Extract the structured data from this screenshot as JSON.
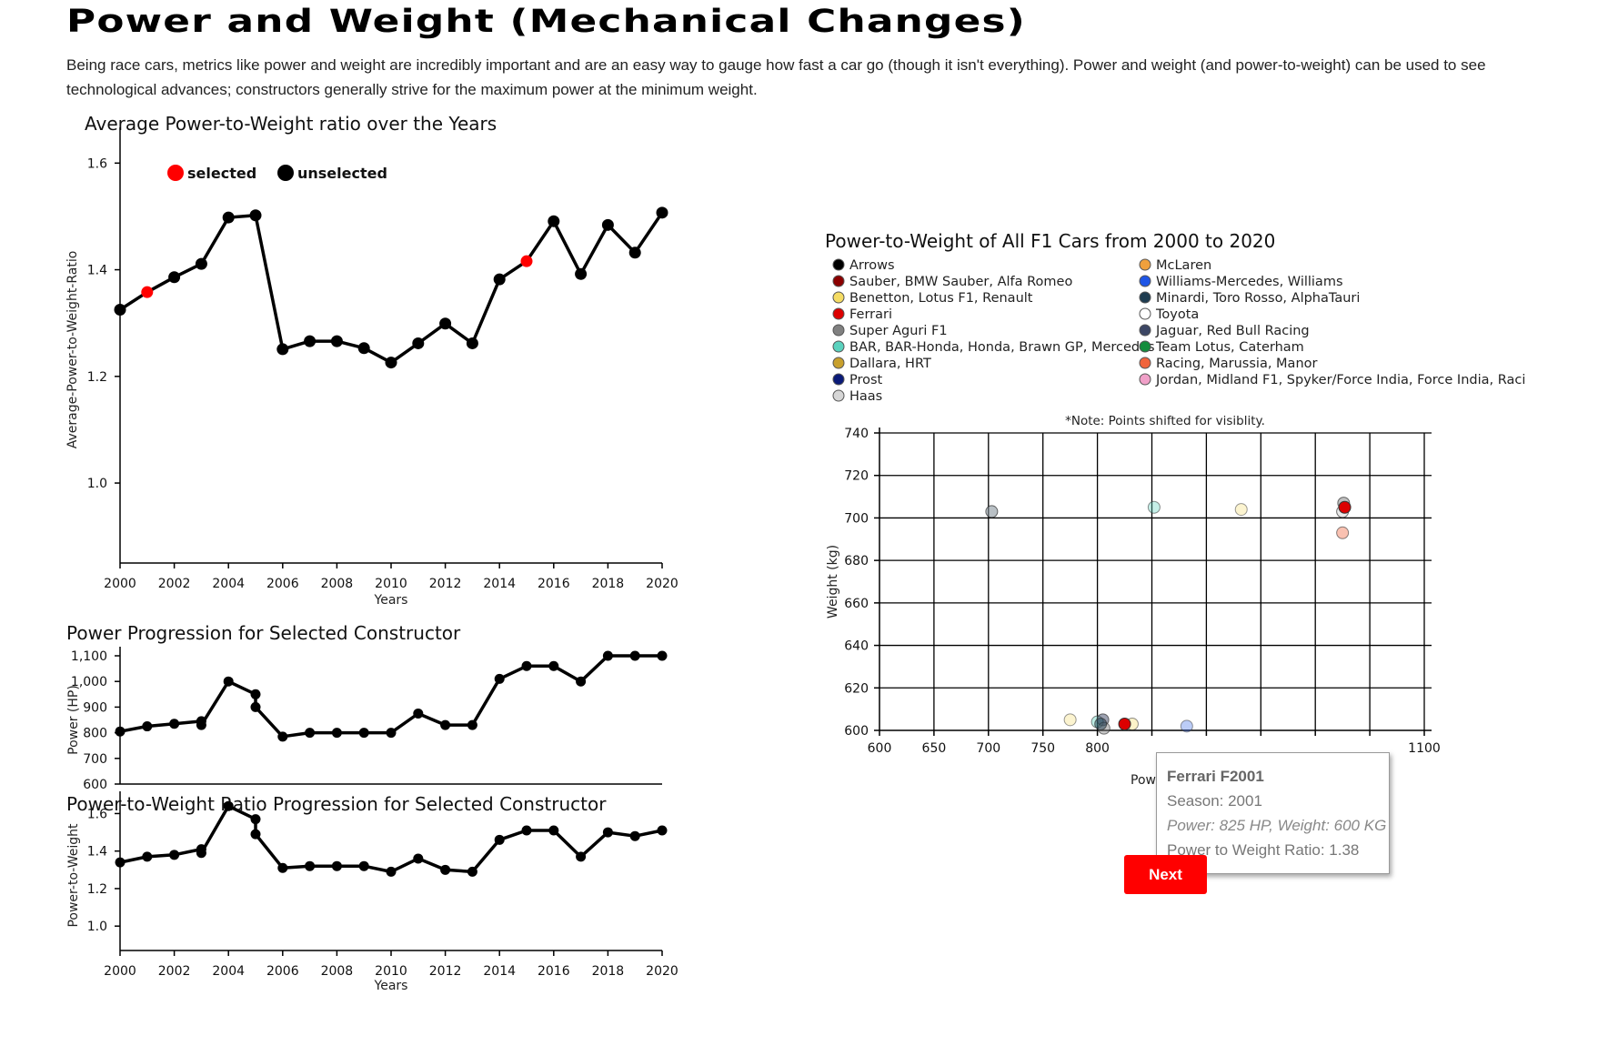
{
  "page": {
    "title": "Power and Weight (Mechanical Changes)",
    "intro": "Being race cars, metrics like power and weight are incredibly important and are an easy way to gauge how fast a car go (though it isn't everything). Power and weight (and power-to-weight) can be used to see technological advances; constructors generally strive for the maximum power at the minimum weight."
  },
  "colors": {
    "selected": "#ff0000",
    "unselected": "#000000",
    "line": "#000000",
    "button": "#ff0000"
  },
  "tooltip": {
    "title": "Ferrari F2001",
    "season": "Season: 2001",
    "detail": "Power: 825 HP, Weight: 600 KG",
    "ratio": "Power to Weight Ratio: 1.38"
  },
  "next_button": {
    "label": "Next"
  },
  "chart_data": [
    {
      "id": "avg-ptw",
      "type": "line",
      "title": "Average Power-to-Weight ratio over the Years",
      "xlabel": "Years",
      "ylabel": "Average-Power-to-Weight-Ratio",
      "xlim": [
        2000,
        2020
      ],
      "ylim": [
        0.85,
        1.65
      ],
      "xticks": [
        2000,
        2002,
        2004,
        2006,
        2008,
        2010,
        2012,
        2014,
        2016,
        2018,
        2020
      ],
      "yticks": [
        1.0,
        1.2,
        1.4,
        1.6
      ],
      "ytick_labels": [
        "1.0",
        "1.2",
        "1.4",
        "1.6"
      ],
      "legend": {
        "position": "top-left",
        "entries": [
          {
            "label": "selected",
            "color": "#ff0000"
          },
          {
            "label": "unselected",
            "color": "#000000"
          }
        ]
      },
      "x": [
        2000,
        2001,
        2002,
        2003,
        2004,
        2005,
        2006,
        2007,
        2008,
        2009,
        2010,
        2011,
        2012,
        2013,
        2014,
        2015,
        2016,
        2017,
        2018,
        2019,
        2020
      ],
      "y": [
        1.325,
        1.358,
        1.386,
        1.411,
        1.498,
        1.502,
        1.251,
        1.266,
        1.266,
        1.253,
        1.226,
        1.262,
        1.299,
        1.262,
        1.382,
        1.416,
        1.491,
        1.392,
        1.484,
        1.432,
        1.507
      ],
      "selected": [
        2001,
        2015
      ]
    },
    {
      "id": "power-prog",
      "type": "line",
      "title": "Power Progression for Selected Constructor",
      "xlabel": "",
      "ylabel": "Power (HP)",
      "xlim": [
        2000,
        2020
      ],
      "ylim": [
        600,
        1100
      ],
      "yticks": [
        600,
        700,
        800,
        900,
        1000,
        1100
      ],
      "ytick_labels": [
        "600",
        "700",
        "800",
        "900",
        "1,000",
        "1,100"
      ],
      "x": [
        2000,
        2001,
        2002,
        2003,
        2003,
        2004,
        2005,
        2005,
        2006,
        2007,
        2008,
        2009,
        2010,
        2011,
        2012,
        2013,
        2014,
        2015,
        2016,
        2017,
        2018,
        2019,
        2020
      ],
      "y": [
        805,
        825,
        835,
        845,
        830,
        1000,
        950,
        900,
        785,
        800,
        800,
        800,
        800,
        875,
        830,
        830,
        1010,
        1060,
        1060,
        1000,
        1100,
        1100,
        1100
      ]
    },
    {
      "id": "ptw-prog",
      "type": "line",
      "title": "Power-to-Weight Ratio Progression for Selected Constructor",
      "xlabel": "Years",
      "ylabel": "Power-to-Weight",
      "xlim": [
        2000,
        2020
      ],
      "ylim": [
        0.87,
        1.67
      ],
      "xticks": [
        2000,
        2002,
        2004,
        2006,
        2008,
        2010,
        2012,
        2014,
        2016,
        2018,
        2020
      ],
      "yticks": [
        1.0,
        1.2,
        1.4,
        1.6
      ],
      "ytick_labels": [
        "1.0",
        "1.2",
        "1.4",
        "1.6"
      ],
      "x": [
        2000,
        2001,
        2002,
        2003,
        2003,
        2004,
        2005,
        2005,
        2006,
        2007,
        2008,
        2009,
        2010,
        2011,
        2012,
        2013,
        2014,
        2015,
        2016,
        2017,
        2018,
        2019,
        2020
      ],
      "y": [
        1.34,
        1.37,
        1.38,
        1.41,
        1.39,
        1.64,
        1.57,
        1.49,
        1.31,
        1.32,
        1.32,
        1.32,
        1.29,
        1.36,
        1.3,
        1.29,
        1.46,
        1.51,
        1.51,
        1.37,
        1.5,
        1.48,
        1.51
      ]
    },
    {
      "id": "ptw-scatter",
      "type": "scatter",
      "title": "Power-to-Weight of All F1 Cars from 2000 to 2020",
      "note": "*Note: Points shifted for visiblity.",
      "xlabel": "Pow",
      "ylabel": "Weight (kg)",
      "xlim": [
        600,
        1100
      ],
      "ylim": [
        600,
        740
      ],
      "xticks": [
        600,
        650,
        700,
        750,
        800,
        850,
        900,
        950,
        1000,
        1050,
        1100
      ],
      "xtick_labels": [
        "600",
        "650",
        "700",
        "750",
        "800",
        "",
        "",
        "",
        "",
        "",
        "1100"
      ],
      "yticks": [
        600,
        620,
        640,
        660,
        680,
        700,
        720,
        740
      ],
      "ytick_labels": [
        "600",
        "620",
        "640",
        "660",
        "680",
        "700",
        "720",
        "740"
      ],
      "legend": [
        {
          "label": "Arrows",
          "color": "#000000"
        },
        {
          "label": "Sauber, BMW Sauber, Alfa Romeo",
          "color": "#8b0000"
        },
        {
          "label": "Benetton, Lotus F1, Renault",
          "color": "#f5dc64"
        },
        {
          "label": "Ferrari",
          "color": "#dc0000"
        },
        {
          "label": "Super Aguri F1",
          "color": "#808080"
        },
        {
          "label": "BAR, BAR-Honda, Honda, Brawn GP, Mercedes",
          "color": "#5ad2be"
        },
        {
          "label": "Dallara, HRT",
          "color": "#c8a02d"
        },
        {
          "label": "Prost",
          "color": "#0a1a78"
        },
        {
          "label": "Haas",
          "color": "#d6d6d6"
        },
        {
          "label": "McLaren",
          "color": "#f0a03c"
        },
        {
          "label": "Williams-Mercedes, Williams",
          "color": "#1e55e6"
        },
        {
          "label": "Minardi, Toro Rosso, AlphaTauri",
          "color": "#1e3c50"
        },
        {
          "label": "Toyota",
          "color": "#ffffff"
        },
        {
          "label": "Jaguar, Red Bull Racing",
          "color": "#3c4664"
        },
        {
          "label": "Team Lotus, Caterham",
          "color": "#148c3c"
        },
        {
          "label": "Racing, Marussia, Manor",
          "color": "#f0643c"
        },
        {
          "label": "Jordan, Midland F1, Spyker/Force India, Force India, Raci",
          "color": "#f0a0c8"
        }
      ],
      "points": [
        {
          "x": 703,
          "y": 703,
          "color": "#808c96",
          "opacity": 0.55
        },
        {
          "x": 852,
          "y": 705,
          "color": "#5ad2be",
          "opacity": 0.35
        },
        {
          "x": 932,
          "y": 704,
          "color": "#f5dc64",
          "opacity": 0.3
        },
        {
          "x": 1026,
          "y": 707,
          "color": "#808080",
          "opacity": 0.5
        },
        {
          "x": 1025,
          "y": 703,
          "color": "#d6d6d6",
          "opacity": 0.5
        },
        {
          "x": 1027,
          "y": 705,
          "color": "#dc0000",
          "opacity": 1
        },
        {
          "x": 1025,
          "y": 693,
          "color": "#f0643c",
          "opacity": 0.4
        },
        {
          "x": 775,
          "y": 605,
          "color": "#f5dc64",
          "opacity": 0.3
        },
        {
          "x": 800,
          "y": 604,
          "color": "#5ad2be",
          "opacity": 0.4
        },
        {
          "x": 805,
          "y": 605,
          "color": "#3c4664",
          "opacity": 0.5
        },
        {
          "x": 806,
          "y": 601,
          "color": "#808080",
          "opacity": 0.45
        },
        {
          "x": 803,
          "y": 603,
          "color": "#1e3c50",
          "opacity": 0.5
        },
        {
          "x": 832,
          "y": 603,
          "color": "#f5dc64",
          "opacity": 0.35
        },
        {
          "x": 825,
          "y": 603,
          "color": "#dc0000",
          "opacity": 1
        },
        {
          "x": 882,
          "y": 602,
          "color": "#1e55e6",
          "opacity": 0.3
        }
      ]
    }
  ]
}
